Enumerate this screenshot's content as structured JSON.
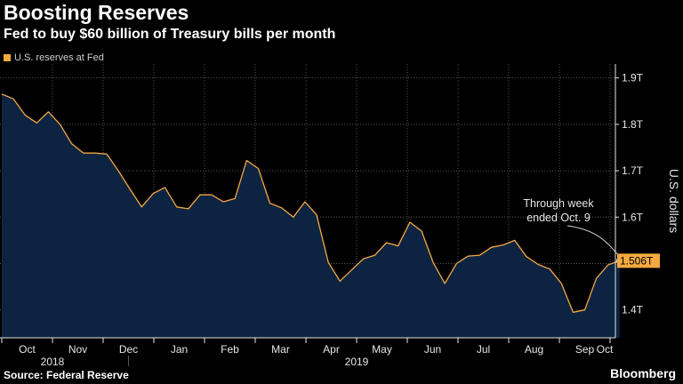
{
  "header": {
    "title": "Boosting Reserves",
    "subtitle": "Fed to buy $60 billion of Treasury bills per month"
  },
  "footer": {
    "source": "Source: Federal Reserve",
    "brand": "Bloomberg"
  },
  "colors": {
    "background": "#000000",
    "series": "#f5a940",
    "fill": "#0c2441",
    "grid": "#555555",
    "text": "#e6e6e6"
  },
  "chart_data": {
    "type": "area",
    "title": "Boosting Reserves",
    "subtitle": "Fed to buy $60 billion of Treasury bills per month",
    "xlabel": "",
    "ylabel": "U.S. dollars",
    "ylim": [
      1.34,
      1.93
    ],
    "yticks": [
      1.4,
      1.5,
      1.6,
      1.7,
      1.8,
      1.9
    ],
    "ytick_labels": [
      "1.4T",
      "",
      "1.6T",
      "1.7T",
      "1.8T",
      "1.9T"
    ],
    "month_labels": [
      "Oct",
      "Nov",
      "Dec",
      "Jan",
      "Feb",
      "Mar",
      "Apr",
      "May",
      "Jun",
      "Jul",
      "Aug",
      "Sep",
      "Oct"
    ],
    "year_labels": [
      {
        "text": "2018",
        "after_month_index": 1
      },
      {
        "text": "2019",
        "after_month_index": 7
      }
    ],
    "grid": true,
    "legend": {
      "position": "top-left",
      "entries": [
        "U.S. reserves at Fed"
      ]
    },
    "series": [
      {
        "name": "U.S. reserves at Fed",
        "x_unit": "months since Oct 1 2018",
        "x": [
          0.0,
          0.23,
          0.46,
          0.69,
          0.92,
          1.15,
          1.38,
          1.61,
          1.84,
          2.07,
          2.3,
          2.53,
          2.76,
          2.99,
          3.22,
          3.45,
          3.68,
          3.91,
          4.14,
          4.37,
          4.6,
          4.83,
          5.06,
          5.29,
          5.52,
          5.75,
          5.98,
          6.21,
          6.44,
          6.67,
          6.9,
          7.13,
          7.36,
          7.59,
          7.82,
          8.05,
          8.28,
          8.51,
          8.74,
          8.97,
          9.2,
          9.43,
          9.66,
          9.89,
          10.12,
          10.35,
          10.58,
          10.81,
          11.04,
          11.27,
          11.5,
          11.73,
          11.96,
          12.19
        ],
        "values": [
          1.865,
          1.855,
          1.82,
          1.803,
          1.827,
          1.8,
          1.758,
          1.738,
          1.738,
          1.736,
          1.7,
          1.66,
          1.622,
          1.651,
          1.664,
          1.622,
          1.618,
          1.648,
          1.648,
          1.633,
          1.64,
          1.722,
          1.705,
          1.63,
          1.62,
          1.6,
          1.633,
          1.605,
          1.503,
          1.462,
          1.486,
          1.51,
          1.518,
          1.545,
          1.538,
          1.589,
          1.57,
          1.502,
          1.457,
          1.5,
          1.516,
          1.518,
          1.535,
          1.54,
          1.55,
          1.515,
          1.498,
          1.488,
          1.457,
          1.395,
          1.4,
          1.468,
          1.497,
          1.506
        ]
      }
    ],
    "last_value_label": "1.506T",
    "annotations": [
      {
        "text": "Through week ended Oct. 9",
        "lines": [
          "Through week",
          "ended Oct. 9"
        ],
        "target_index": 53
      }
    ]
  }
}
